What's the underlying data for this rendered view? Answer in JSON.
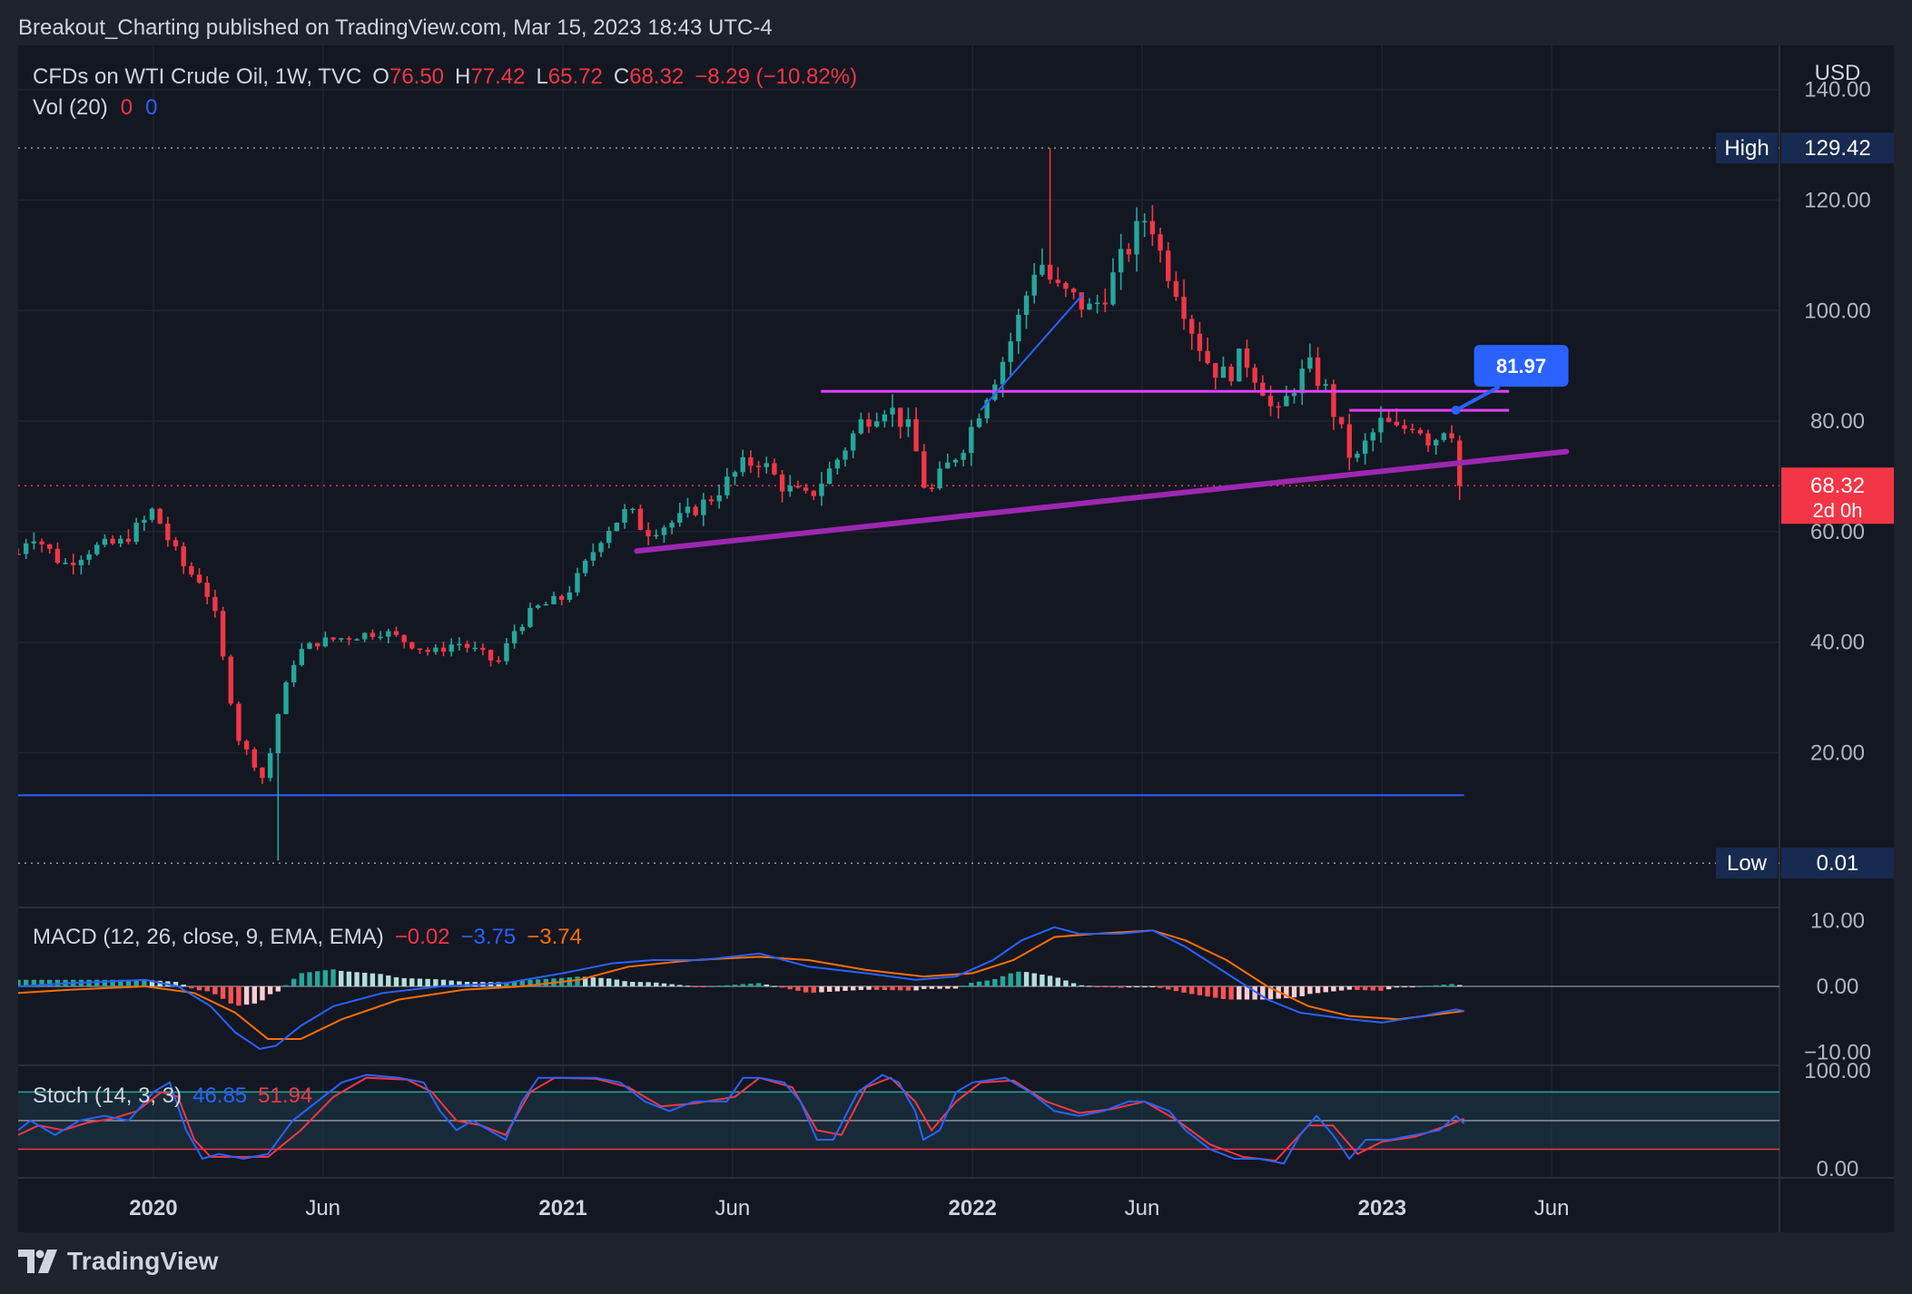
{
  "header": {
    "publish_line": "Breakout_Charting published on TradingView.com, Mar 15, 2023 18:43 UTC-4"
  },
  "legend": {
    "symbol": "CFDs on WTI Crude Oil, 1W, TVC",
    "o_label": "O",
    "o_value": "76.50",
    "h_label": "H",
    "h_value": "77.42",
    "l_label": "L",
    "l_value": "65.72",
    "c_label": "C",
    "c_value": "68.32",
    "change": "−8.29 (−10.82%)"
  },
  "vol": {
    "label": "Vol (20)",
    "v1": "0",
    "v2": "0"
  },
  "macd": {
    "label": "MACD (12, 26, close, 9, EMA, EMA)",
    "hist": "−0.02",
    "macd": "−3.75",
    "signal": "−3.74"
  },
  "stoch": {
    "label": "Stoch (14, 3, 3)",
    "k": "46.85",
    "d": "51.94"
  },
  "footer": {
    "brand": "TradingView"
  },
  "colors": {
    "up": "#26a69a",
    "down": "#f23645",
    "bg": "#131722",
    "macd_line": "#2962ff",
    "signal_line": "#ff6d00",
    "trend": "#9c27b0",
    "resistance": "#e040fb",
    "stoch_band": "#1e3a4a"
  },
  "chart_data": [
    {
      "type": "candlestick",
      "currency": "USD",
      "y_ticks": [
        "140.00",
        "120.00",
        "100.00",
        "80.00",
        "60.00",
        "40.00",
        "20.00"
      ],
      "ylim": [
        -8,
        148
      ],
      "x_ticks": [
        {
          "label": "2020",
          "bold": true,
          "t": 2020.0
        },
        {
          "label": "Jun",
          "bold": false,
          "t": 2020.414
        },
        {
          "label": "2021",
          "bold": true,
          "t": 2021.0
        },
        {
          "label": "Jun",
          "bold": false,
          "t": 2021.414
        },
        {
          "label": "2022",
          "bold": true,
          "t": 2022.0
        },
        {
          "label": "Jun",
          "bold": false,
          "t": 2022.414
        },
        {
          "label": "2023",
          "bold": true,
          "t": 2023.0
        },
        {
          "label": "Jun",
          "bold": false,
          "t": 2023.414
        }
      ],
      "xlim": [
        2019.67,
        2023.97
      ],
      "high_marker": {
        "label": "High",
        "value": "129.42",
        "y": 129.42
      },
      "low_marker": {
        "label": "Low",
        "value": "0.01",
        "y": 0.01
      },
      "last_price": {
        "value": "68.32",
        "countdown": "2d 0h",
        "y": 68.32
      },
      "callout": {
        "value": "81.97",
        "y": 81.97,
        "t": 2023.18
      },
      "support_level": {
        "y": 12.3,
        "t0": 2019.67,
        "t1": 2023.2
      },
      "resistance_lines": [
        {
          "t0": 2021.63,
          "t1": 2023.31,
          "y": 85.4
        },
        {
          "t0": 2022.92,
          "t1": 2023.31,
          "y": 81.97
        }
      ],
      "trendline": {
        "t0": 2021.18,
        "y0": 56.5,
        "t1": 2023.45,
        "y1": 74.5
      },
      "rally_line": {
        "t0": 2022.02,
        "y0": 82,
        "t1": 2022.27,
        "y1": 103
      },
      "anchors": [
        [
          2019.67,
          56
        ],
        [
          2019.7,
          60
        ],
        [
          2019.78,
          54
        ],
        [
          2019.85,
          57
        ],
        [
          2019.92,
          58
        ],
        [
          2019.98,
          62
        ],
        [
          2020.0,
          64
        ],
        [
          2020.04,
          58
        ],
        [
          2020.08,
          53
        ],
        [
          2020.12,
          51
        ],
        [
          2020.15,
          45
        ],
        [
          2020.18,
          33
        ],
        [
          2020.21,
          22
        ],
        [
          2020.24,
          19
        ],
        [
          2020.27,
          15
        ],
        [
          2020.28,
          18
        ],
        [
          2020.31,
          29
        ],
        [
          2020.35,
          38
        ],
        [
          2020.4,
          40
        ],
        [
          2020.48,
          41
        ],
        [
          2020.56,
          42
        ],
        [
          2020.62,
          40
        ],
        [
          2020.68,
          38
        ],
        [
          2020.74,
          40
        ],
        [
          2020.8,
          38
        ],
        [
          2020.84,
          36
        ],
        [
          2020.88,
          42
        ],
        [
          2020.93,
          46
        ],
        [
          2021.0,
          48
        ],
        [
          2021.04,
          52
        ],
        [
          2021.1,
          60
        ],
        [
          2021.16,
          64
        ],
        [
          2021.2,
          60
        ],
        [
          2021.28,
          62
        ],
        [
          2021.36,
          66
        ],
        [
          2021.44,
          72
        ],
        [
          2021.48,
          73
        ],
        [
          2021.54,
          68
        ],
        [
          2021.6,
          66
        ],
        [
          2021.66,
          72
        ],
        [
          2021.73,
          80
        ],
        [
          2021.79,
          83
        ],
        [
          2021.85,
          78
        ],
        [
          2021.89,
          66
        ],
        [
          2021.92,
          70
        ],
        [
          2021.98,
          76
        ],
        [
          2022.04,
          86
        ],
        [
          2022.08,
          92
        ],
        [
          2022.12,
          100
        ],
        [
          2022.16,
          110
        ],
        [
          2022.2,
          104
        ],
        [
          2022.25,
          102
        ],
        [
          2022.29,
          100
        ],
        [
          2022.33,
          104
        ],
        [
          2022.37,
          110
        ],
        [
          2022.4,
          114
        ],
        [
          2022.43,
          118
        ],
        [
          2022.46,
          110
        ],
        [
          2022.5,
          104
        ],
        [
          2022.54,
          96
        ],
        [
          2022.58,
          90
        ],
        [
          2022.62,
          88
        ],
        [
          2022.66,
          92
        ],
        [
          2022.71,
          86
        ],
        [
          2022.74,
          80
        ],
        [
          2022.78,
          86
        ],
        [
          2022.82,
          90
        ],
        [
          2022.86,
          86
        ],
        [
          2022.9,
          78
        ],
        [
          2022.93,
          72
        ],
        [
          2022.96,
          76
        ],
        [
          2023.0,
          80
        ],
        [
          2023.04,
          78
        ],
        [
          2023.08,
          80
        ],
        [
          2023.12,
          76
        ],
        [
          2023.15,
          79
        ],
        [
          2023.18,
          78
        ],
        [
          2023.2,
          70
        ]
      ]
    },
    {
      "type": "macd",
      "y_ticks": [
        "10.00",
        "0.00",
        "−10.00"
      ],
      "ylim": [
        -12,
        12
      ],
      "macd_points": [
        [
          2019.67,
          0
        ],
        [
          2019.8,
          0.5
        ],
        [
          2019.98,
          1
        ],
        [
          2020.06,
          0
        ],
        [
          2020.14,
          -3
        ],
        [
          2020.2,
          -7
        ],
        [
          2020.26,
          -9.5
        ],
        [
          2020.3,
          -9
        ],
        [
          2020.36,
          -6
        ],
        [
          2020.44,
          -3
        ],
        [
          2020.56,
          -1
        ],
        [
          2020.7,
          0
        ],
        [
          2020.86,
          0.5
        ],
        [
          2021.0,
          2
        ],
        [
          2021.12,
          3.5
        ],
        [
          2021.22,
          4
        ],
        [
          2021.34,
          4
        ],
        [
          2021.48,
          5
        ],
        [
          2021.6,
          3
        ],
        [
          2021.74,
          2
        ],
        [
          2021.86,
          1
        ],
        [
          2021.96,
          1.5
        ],
        [
          2022.05,
          4
        ],
        [
          2022.12,
          7
        ],
        [
          2022.2,
          9
        ],
        [
          2022.26,
          8
        ],
        [
          2022.36,
          8
        ],
        [
          2022.44,
          8.5
        ],
        [
          2022.52,
          6
        ],
        [
          2022.62,
          2
        ],
        [
          2022.72,
          -2
        ],
        [
          2022.8,
          -4
        ],
        [
          2022.92,
          -5
        ],
        [
          2023.0,
          -5.5
        ],
        [
          2023.1,
          -4.5
        ],
        [
          2023.18,
          -3.5
        ],
        [
          2023.2,
          -3.75
        ]
      ],
      "signal_points": [
        [
          2019.67,
          -1
        ],
        [
          2019.8,
          -0.5
        ],
        [
          2019.98,
          0
        ],
        [
          2020.1,
          -1
        ],
        [
          2020.2,
          -4
        ],
        [
          2020.28,
          -8
        ],
        [
          2020.36,
          -8
        ],
        [
          2020.46,
          -5
        ],
        [
          2020.6,
          -2
        ],
        [
          2020.76,
          -0.5
        ],
        [
          2020.9,
          0
        ],
        [
          2021.04,
          1
        ],
        [
          2021.16,
          3
        ],
        [
          2021.32,
          4
        ],
        [
          2021.48,
          4.5
        ],
        [
          2021.6,
          4
        ],
        [
          2021.74,
          2.5
        ],
        [
          2021.88,
          1.5
        ],
        [
          2022.0,
          2
        ],
        [
          2022.1,
          4
        ],
        [
          2022.2,
          7.5
        ],
        [
          2022.3,
          8
        ],
        [
          2022.44,
          8.5
        ],
        [
          2022.52,
          7
        ],
        [
          2022.62,
          4
        ],
        [
          2022.72,
          0
        ],
        [
          2022.82,
          -3
        ],
        [
          2022.92,
          -4.5
        ],
        [
          2023.04,
          -5
        ],
        [
          2023.2,
          -3.74
        ]
      ]
    },
    {
      "type": "stochastic",
      "y_ticks": [
        "100.00",
        "0.00"
      ],
      "ylim": [
        -10,
        108
      ],
      "bands": [
        80,
        50,
        20
      ],
      "k_points": [
        [
          2019.67,
          40
        ],
        [
          2019.7,
          50
        ],
        [
          2019.76,
          35
        ],
        [
          2019.82,
          50
        ],
        [
          2019.88,
          55
        ],
        [
          2019.94,
          50
        ],
        [
          2020.0,
          80
        ],
        [
          2020.04,
          90
        ],
        [
          2020.08,
          40
        ],
        [
          2020.12,
          10
        ],
        [
          2020.16,
          15
        ],
        [
          2020.22,
          10
        ],
        [
          2020.28,
          15
        ],
        [
          2020.34,
          50
        ],
        [
          2020.4,
          70
        ],
        [
          2020.46,
          90
        ],
        [
          2020.52,
          98
        ],
        [
          2020.6,
          95
        ],
        [
          2020.66,
          90
        ],
        [
          2020.7,
          60
        ],
        [
          2020.74,
          40
        ],
        [
          2020.78,
          50
        ],
        [
          2020.82,
          40
        ],
        [
          2020.86,
          30
        ],
        [
          2020.9,
          70
        ],
        [
          2020.94,
          95
        ],
        [
          2021.0,
          95
        ],
        [
          2021.08,
          95
        ],
        [
          2021.14,
          90
        ],
        [
          2021.2,
          70
        ],
        [
          2021.26,
          60
        ],
        [
          2021.32,
          70
        ],
        [
          2021.4,
          70
        ],
        [
          2021.44,
          95
        ],
        [
          2021.48,
          95
        ],
        [
          2021.54,
          90
        ],
        [
          2021.58,
          70
        ],
        [
          2021.62,
          30
        ],
        [
          2021.66,
          30
        ],
        [
          2021.72,
          80
        ],
        [
          2021.78,
          98
        ],
        [
          2021.82,
          90
        ],
        [
          2021.86,
          60
        ],
        [
          2021.88,
          30
        ],
        [
          2021.92,
          40
        ],
        [
          2021.96,
          80
        ],
        [
          2022.0,
          90
        ],
        [
          2022.08,
          95
        ],
        [
          2022.14,
          80
        ],
        [
          2022.2,
          60
        ],
        [
          2022.26,
          55
        ],
        [
          2022.32,
          60
        ],
        [
          2022.38,
          70
        ],
        [
          2022.42,
          70
        ],
        [
          2022.48,
          60
        ],
        [
          2022.52,
          40
        ],
        [
          2022.58,
          20
        ],
        [
          2022.64,
          10
        ],
        [
          2022.7,
          10
        ],
        [
          2022.76,
          5
        ],
        [
          2022.8,
          35
        ],
        [
          2022.84,
          55
        ],
        [
          2022.88,
          35
        ],
        [
          2022.92,
          10
        ],
        [
          2022.96,
          30
        ],
        [
          2023.02,
          30
        ],
        [
          2023.08,
          35
        ],
        [
          2023.14,
          40
        ],
        [
          2023.18,
          55
        ],
        [
          2023.2,
          47
        ]
      ],
      "d_points": [
        [
          2019.67,
          35
        ],
        [
          2019.72,
          45
        ],
        [
          2019.78,
          40
        ],
        [
          2019.84,
          48
        ],
        [
          2019.9,
          52
        ],
        [
          2019.96,
          60
        ],
        [
          2020.02,
          80
        ],
        [
          2020.06,
          75
        ],
        [
          2020.1,
          30
        ],
        [
          2020.14,
          12
        ],
        [
          2020.2,
          12
        ],
        [
          2020.28,
          12
        ],
        [
          2020.36,
          40
        ],
        [
          2020.44,
          75
        ],
        [
          2020.52,
          95
        ],
        [
          2020.62,
          93
        ],
        [
          2020.68,
          80
        ],
        [
          2020.74,
          50
        ],
        [
          2020.8,
          45
        ],
        [
          2020.86,
          35
        ],
        [
          2020.92,
          80
        ],
        [
          2020.98,
          95
        ],
        [
          2021.08,
          94
        ],
        [
          2021.16,
          85
        ],
        [
          2021.24,
          65
        ],
        [
          2021.32,
          68
        ],
        [
          2021.42,
          75
        ],
        [
          2021.48,
          95
        ],
        [
          2021.56,
          85
        ],
        [
          2021.62,
          40
        ],
        [
          2021.68,
          35
        ],
        [
          2021.74,
          85
        ],
        [
          2021.8,
          95
        ],
        [
          2021.86,
          70
        ],
        [
          2021.9,
          40
        ],
        [
          2021.96,
          70
        ],
        [
          2022.02,
          90
        ],
        [
          2022.1,
          92
        ],
        [
          2022.18,
          70
        ],
        [
          2022.26,
          58
        ],
        [
          2022.34,
          62
        ],
        [
          2022.42,
          70
        ],
        [
          2022.5,
          50
        ],
        [
          2022.58,
          25
        ],
        [
          2022.66,
          12
        ],
        [
          2022.74,
          8
        ],
        [
          2022.82,
          45
        ],
        [
          2022.88,
          45
        ],
        [
          2022.94,
          15
        ],
        [
          2023.0,
          28
        ],
        [
          2023.08,
          33
        ],
        [
          2023.16,
          45
        ],
        [
          2023.2,
          52
        ]
      ]
    }
  ]
}
